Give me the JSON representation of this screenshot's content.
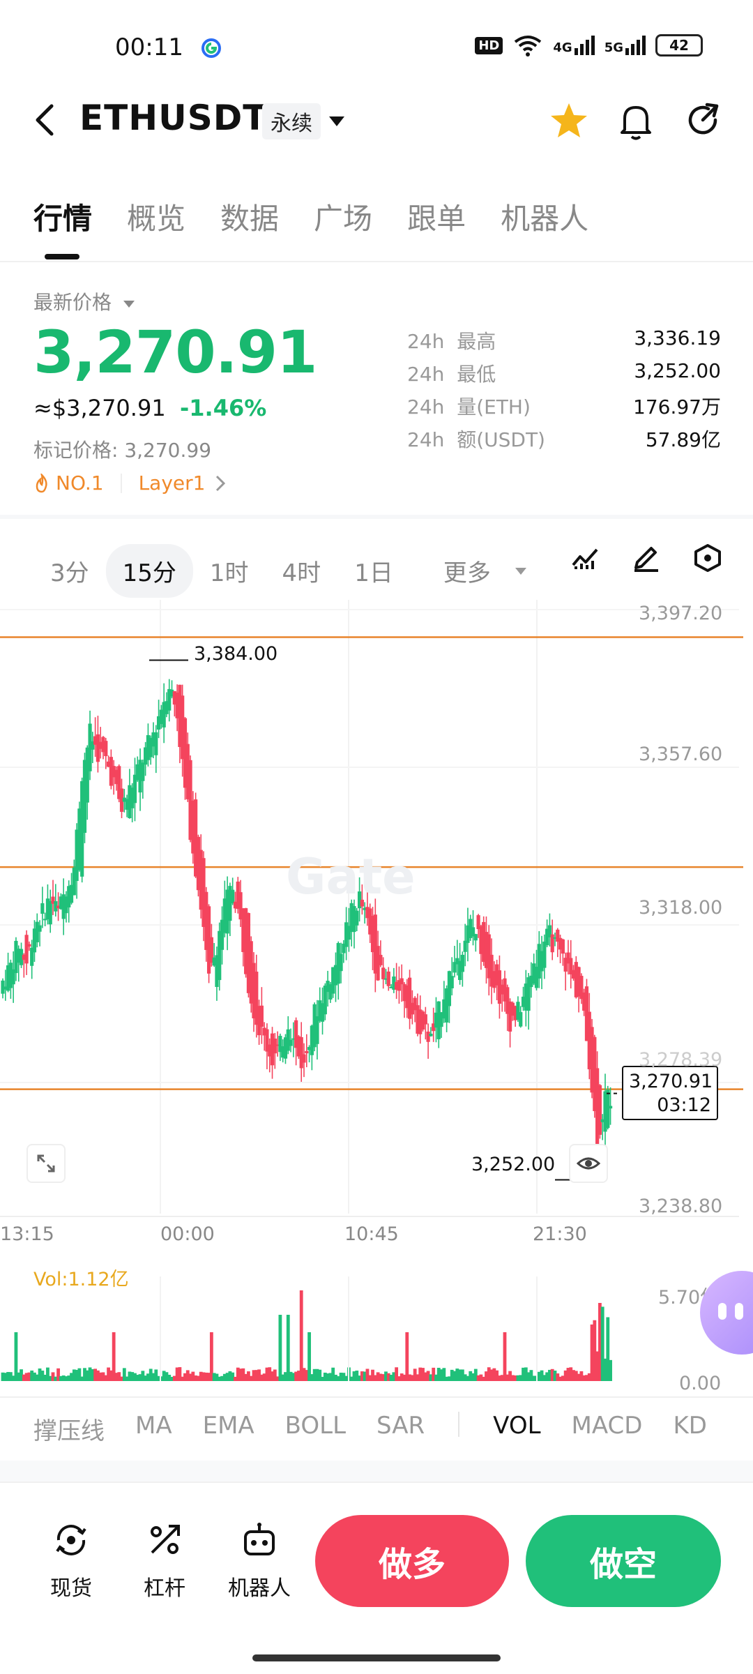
{
  "status_bar": {
    "time": "00:11",
    "battery": "42",
    "network": "HD",
    "signal_4g": "4G",
    "signal_5g": "5G"
  },
  "header": {
    "back": "‹",
    "symbol": "ETHUSDT",
    "contract_type": "永续"
  },
  "tabs": [
    "行情",
    "概览",
    "数据",
    "广场",
    "跟单",
    "机器人"
  ],
  "price": {
    "label": "最新价格",
    "last": "3,270.91",
    "usd": "≈$3,270.91",
    "change": "-1.46%",
    "mark_label": "标记价格: 3,270.99",
    "rank_tag": "NO.1",
    "category_tag": "Layer1"
  },
  "stats": [
    {
      "period": "24h",
      "label": "最高",
      "value": "3,336.19"
    },
    {
      "period": "24h",
      "label": "最低",
      "value": "3,252.00"
    },
    {
      "period": "24h",
      "label": "量(ETH)",
      "value": "176.97万"
    },
    {
      "period": "24h",
      "label": "额(USDT)",
      "value": "57.89亿"
    }
  ],
  "intervals": [
    "3分",
    "15分",
    "1时",
    "4时",
    "1日",
    "更多"
  ],
  "chart": {
    "watermark": "Gate",
    "high_label": "3,384.00",
    "low_label": "3,252.00",
    "current_price": "3,270.91",
    "countdown": "03:12",
    "y_ticks": [
      "3,397.20",
      "3,357.60",
      "3,318.00",
      "3,278.39",
      "3,238.80"
    ],
    "x_ticks": [
      "13:15",
      "00:00",
      "10:45",
      "21:30"
    ],
    "vol_label": "Vol:1.12亿",
    "vol_ticks": [
      "5.70亿",
      "0.00"
    ],
    "colors": {
      "up": "#20c07a",
      "down": "#f4445d",
      "level_line": "#e8842b"
    }
  },
  "chart_data": {
    "type": "candlestick",
    "interval": "15分",
    "high": 3384.0,
    "low": 3252.0,
    "last": 3270.91,
    "ylim": [
      3238.8,
      3397.2
    ],
    "y_ticks": [
      3397.2,
      3357.6,
      3318.0,
      3278.39,
      3238.8
    ],
    "x_ticks": [
      "13:15",
      "00:00",
      "10:45",
      "21:30"
    ],
    "close_path": [
      3300,
      3304,
      3310,
      3305,
      3315,
      3318,
      3322,
      3318,
      3325,
      3330,
      3355,
      3365,
      3360,
      3358,
      3352,
      3345,
      3350,
      3355,
      3360,
      3365,
      3372,
      3378,
      3370,
      3350,
      3335,
      3320,
      3300,
      3310,
      3320,
      3325,
      3315,
      3300,
      3290,
      3285,
      3280,
      3283,
      3290,
      3282,
      3278,
      3290,
      3295,
      3300,
      3305,
      3312,
      3318,
      3322,
      3315,
      3305,
      3300,
      3298,
      3300,
      3295,
      3290,
      3288,
      3285,
      3292,
      3300,
      3305,
      3310,
      3315,
      3312,
      3305,
      3300,
      3295,
      3290,
      3292,
      3298,
      3305,
      3310,
      3312,
      3308,
      3305,
      3300,
      3295,
      3280,
      3258,
      3270
    ]
  },
  "indicators": [
    "撑压线",
    "MA",
    "EMA",
    "BOLL",
    "SAR",
    "VOL",
    "MACD",
    "KD"
  ],
  "bottom": {
    "spot": "现货",
    "margin": "杠杆",
    "bot": "机器人",
    "long": "做多",
    "short": "做空"
  }
}
